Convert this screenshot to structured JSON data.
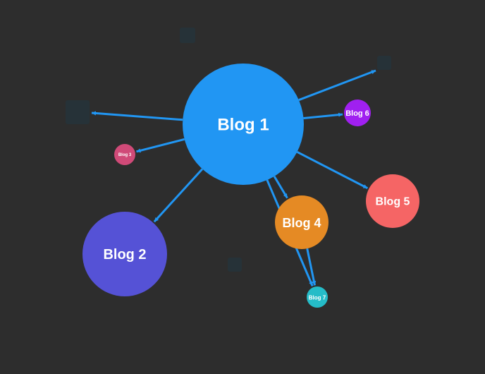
{
  "graph": {
    "background": "#2d2d2d",
    "edge_color": "#2196f3",
    "placeholder_color": "#263238",
    "nodes": [
      {
        "id": "blog-1",
        "label": "Blog 1",
        "color": "#2196f3"
      },
      {
        "id": "blog-2",
        "label": "Blog 2",
        "color": "#5552d6"
      },
      {
        "id": "blog-3",
        "label": "Blog 3",
        "color": "#d04a78"
      },
      {
        "id": "blog-4",
        "label": "Blog 4",
        "color": "#e58a24"
      },
      {
        "id": "blog-5",
        "label": "Blog 5",
        "color": "#f56565"
      },
      {
        "id": "blog-6",
        "label": "Blog 6",
        "color": "#a020f0"
      },
      {
        "id": "blog-7",
        "label": "Blog 7",
        "color": "#25bcc8"
      }
    ],
    "placeholders": [
      "placeholder-a",
      "placeholder-b",
      "placeholder-c",
      "placeholder-d"
    ],
    "edges": [
      {
        "from": "blog-1",
        "to": "blog-2"
      },
      {
        "from": "blog-1",
        "to": "blog-3"
      },
      {
        "from": "blog-1",
        "to": "blog-4"
      },
      {
        "from": "blog-1",
        "to": "blog-5"
      },
      {
        "from": "blog-1",
        "to": "blog-6"
      },
      {
        "from": "blog-1",
        "to": "blog-7"
      },
      {
        "from": "blog-4",
        "to": "blog-7"
      },
      {
        "from": "blog-1",
        "to": "placeholder-a"
      },
      {
        "from": "blog-1",
        "to": "placeholder-b"
      }
    ]
  }
}
